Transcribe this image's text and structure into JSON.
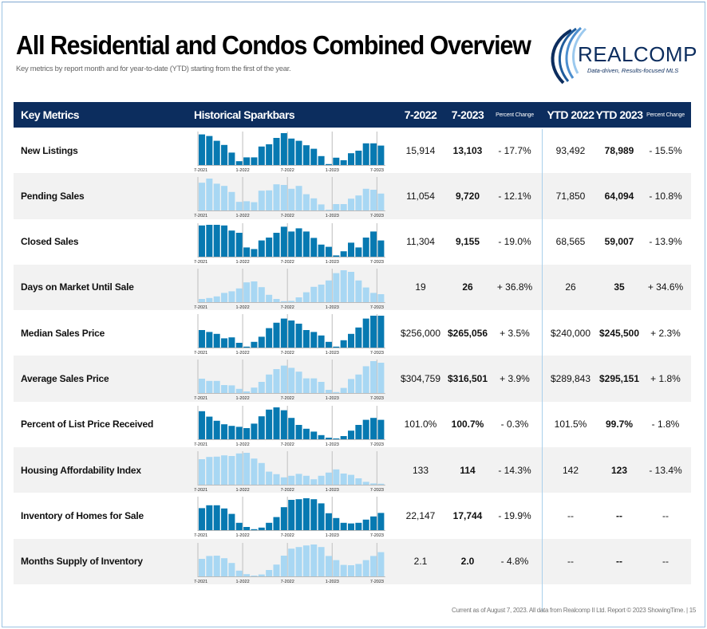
{
  "title": "All Residential and Condos Combined Overview",
  "subtitle": "Key metrics by report month and for year-to-date (YTD) starting from the first of the year.",
  "logo": {
    "name": "REALCOMP",
    "tagline": "Data-driven, Results-focused MLS"
  },
  "colors": {
    "header_bg": "#0c2d5e",
    "bar_dark": "#0779b1",
    "bar_light": "#a8d7f3",
    "row_alt": "#f2f2f2"
  },
  "headers": {
    "key_metrics": "Key Metrics",
    "sparkbars": "Historical Sparkbars",
    "m2022": "7-2022",
    "m2023": "7-2023",
    "pct": "Percent Change",
    "ytd2022": "YTD 2022",
    "ytd2023": "YTD 2023",
    "ytd_pct": "Percent Change"
  },
  "spark_axis_labels": [
    "7-2021",
    "1-2022",
    "7-2022",
    "1-2023",
    "7-2023"
  ],
  "rows": [
    {
      "label": "New Listings",
      "m2022": "15,914",
      "m2023": "13,103",
      "pct": "- 17.7%",
      "ytd2022": "93,492",
      "ytd2023": "78,989",
      "ytd_pct": "- 15.5%",
      "bar_style": "dark",
      "spark": [
        96,
        91,
        76,
        63,
        39,
        12,
        24,
        24,
        58,
        65,
        85,
        100,
        83,
        76,
        62,
        51,
        28,
        3,
        23,
        15,
        37,
        45,
        68,
        68,
        61
      ]
    },
    {
      "label": "Pending Sales",
      "m2022": "11,054",
      "m2023": "9,720",
      "pct": "- 12.1%",
      "ytd2022": "71,850",
      "ytd2023": "64,094",
      "ytd_pct": "- 10.8%",
      "bar_style": "light",
      "spark": [
        87,
        100,
        84,
        77,
        58,
        27,
        29,
        26,
        62,
        63,
        82,
        80,
        68,
        77,
        51,
        38,
        19,
        2,
        20,
        20,
        37,
        47,
        68,
        65,
        53
      ]
    },
    {
      "label": "Closed Sales",
      "m2022": "11,304",
      "m2023": "9,155",
      "pct": "- 19.0%",
      "ytd2022": "68,565",
      "ytd2023": "59,007",
      "ytd_pct": "- 13.9%",
      "bar_style": "dark",
      "spark": [
        98,
        100,
        100,
        98,
        82,
        75,
        29,
        24,
        51,
        60,
        75,
        94,
        79,
        89,
        79,
        59,
        38,
        31,
        4,
        17,
        44,
        29,
        60,
        79,
        51
      ]
    },
    {
      "label": "Days on Market Until Sale",
      "m2022": "19",
      "m2023": "26",
      "pct": "+ 36.8%",
      "ytd2022": "26",
      "ytd2023": "35",
      "ytd_pct": "+ 34.6%",
      "bar_style": "light",
      "spark": [
        10,
        13,
        18,
        29,
        34,
        43,
        62,
        65,
        47,
        23,
        10,
        3,
        4,
        15,
        31,
        48,
        55,
        68,
        91,
        100,
        95,
        68,
        46,
        29,
        25
      ]
    },
    {
      "label": "Median Sales Price",
      "m2022": "$256,000",
      "m2023": "$265,056",
      "pct": "+ 3.5%",
      "ytd2022": "$240,000",
      "ytd2023": "$245,500",
      "ytd_pct": "+ 2.3%",
      "bar_style": "dark",
      "spark": [
        55,
        49,
        43,
        29,
        32,
        15,
        3,
        18,
        34,
        61,
        78,
        91,
        85,
        75,
        55,
        49,
        38,
        18,
        3,
        23,
        43,
        63,
        91,
        100,
        100
      ]
    },
    {
      "label": "Average Sales Price",
      "m2022": "$304,759",
      "m2023": "$316,501",
      "pct": "+ 3.9%",
      "ytd2022": "$289,843",
      "ytd2023": "$295,151",
      "ytd_pct": "+ 1.8%",
      "bar_style": "light",
      "spark": [
        45,
        38,
        38,
        25,
        24,
        13,
        5,
        17,
        35,
        58,
        75,
        86,
        79,
        67,
        46,
        46,
        35,
        10,
        3,
        16,
        44,
        58,
        84,
        100,
        95
      ]
    },
    {
      "label": "Percent of List Price Received",
      "m2022": "101.0%",
      "m2023": "100.7%",
      "pct": "- 0.3%",
      "ytd2022": "101.5%",
      "ytd2023": "99.7%",
      "ytd_pct": "- 1.8%",
      "bar_style": "dark",
      "spark": [
        88,
        71,
        58,
        47,
        42,
        39,
        35,
        49,
        72,
        93,
        100,
        91,
        67,
        45,
        33,
        24,
        13,
        5,
        1,
        10,
        27,
        45,
        61,
        67,
        61
      ]
    },
    {
      "label": "Housing Affordability Index",
      "m2022": "133",
      "m2023": "114",
      "pct": "- 14.3%",
      "ytd2022": "142",
      "ytd2023": "123",
      "ytd_pct": "- 13.4%",
      "bar_style": "light",
      "spark": [
        80,
        87,
        88,
        92,
        90,
        98,
        100,
        82,
        68,
        41,
        33,
        23,
        28,
        34,
        28,
        17,
        28,
        38,
        48,
        35,
        31,
        20,
        9,
        4,
        3
      ]
    },
    {
      "label": "Inventory of Homes for Sale",
      "m2022": "22,147",
      "m2023": "17,744",
      "pct": "- 19.9%",
      "ytd2022": "--",
      "ytd2023": "--",
      "ytd_pct": "--",
      "bar_style": "dark",
      "spark": [
        69,
        78,
        78,
        68,
        51,
        23,
        10,
        3,
        8,
        23,
        41,
        72,
        95,
        97,
        100,
        97,
        84,
        53,
        38,
        23,
        21,
        23,
        33,
        43,
        54
      ]
    },
    {
      "label": "Months Supply of Inventory",
      "m2022": "2.1",
      "m2023": "2.0",
      "pct": "- 4.8%",
      "ytd2022": "--",
      "ytd2023": "--",
      "ytd_pct": "--",
      "bar_style": "light",
      "spark": [
        55,
        64,
        65,
        57,
        42,
        18,
        7,
        2,
        6,
        20,
        37,
        65,
        87,
        92,
        97,
        100,
        92,
        64,
        51,
        36,
        35,
        39,
        51,
        64,
        76
      ]
    }
  ],
  "footer": "Current as of August 7, 2023. All data from Realcomp II Ltd. Report © 2023 ShowingTime.  |  15"
}
